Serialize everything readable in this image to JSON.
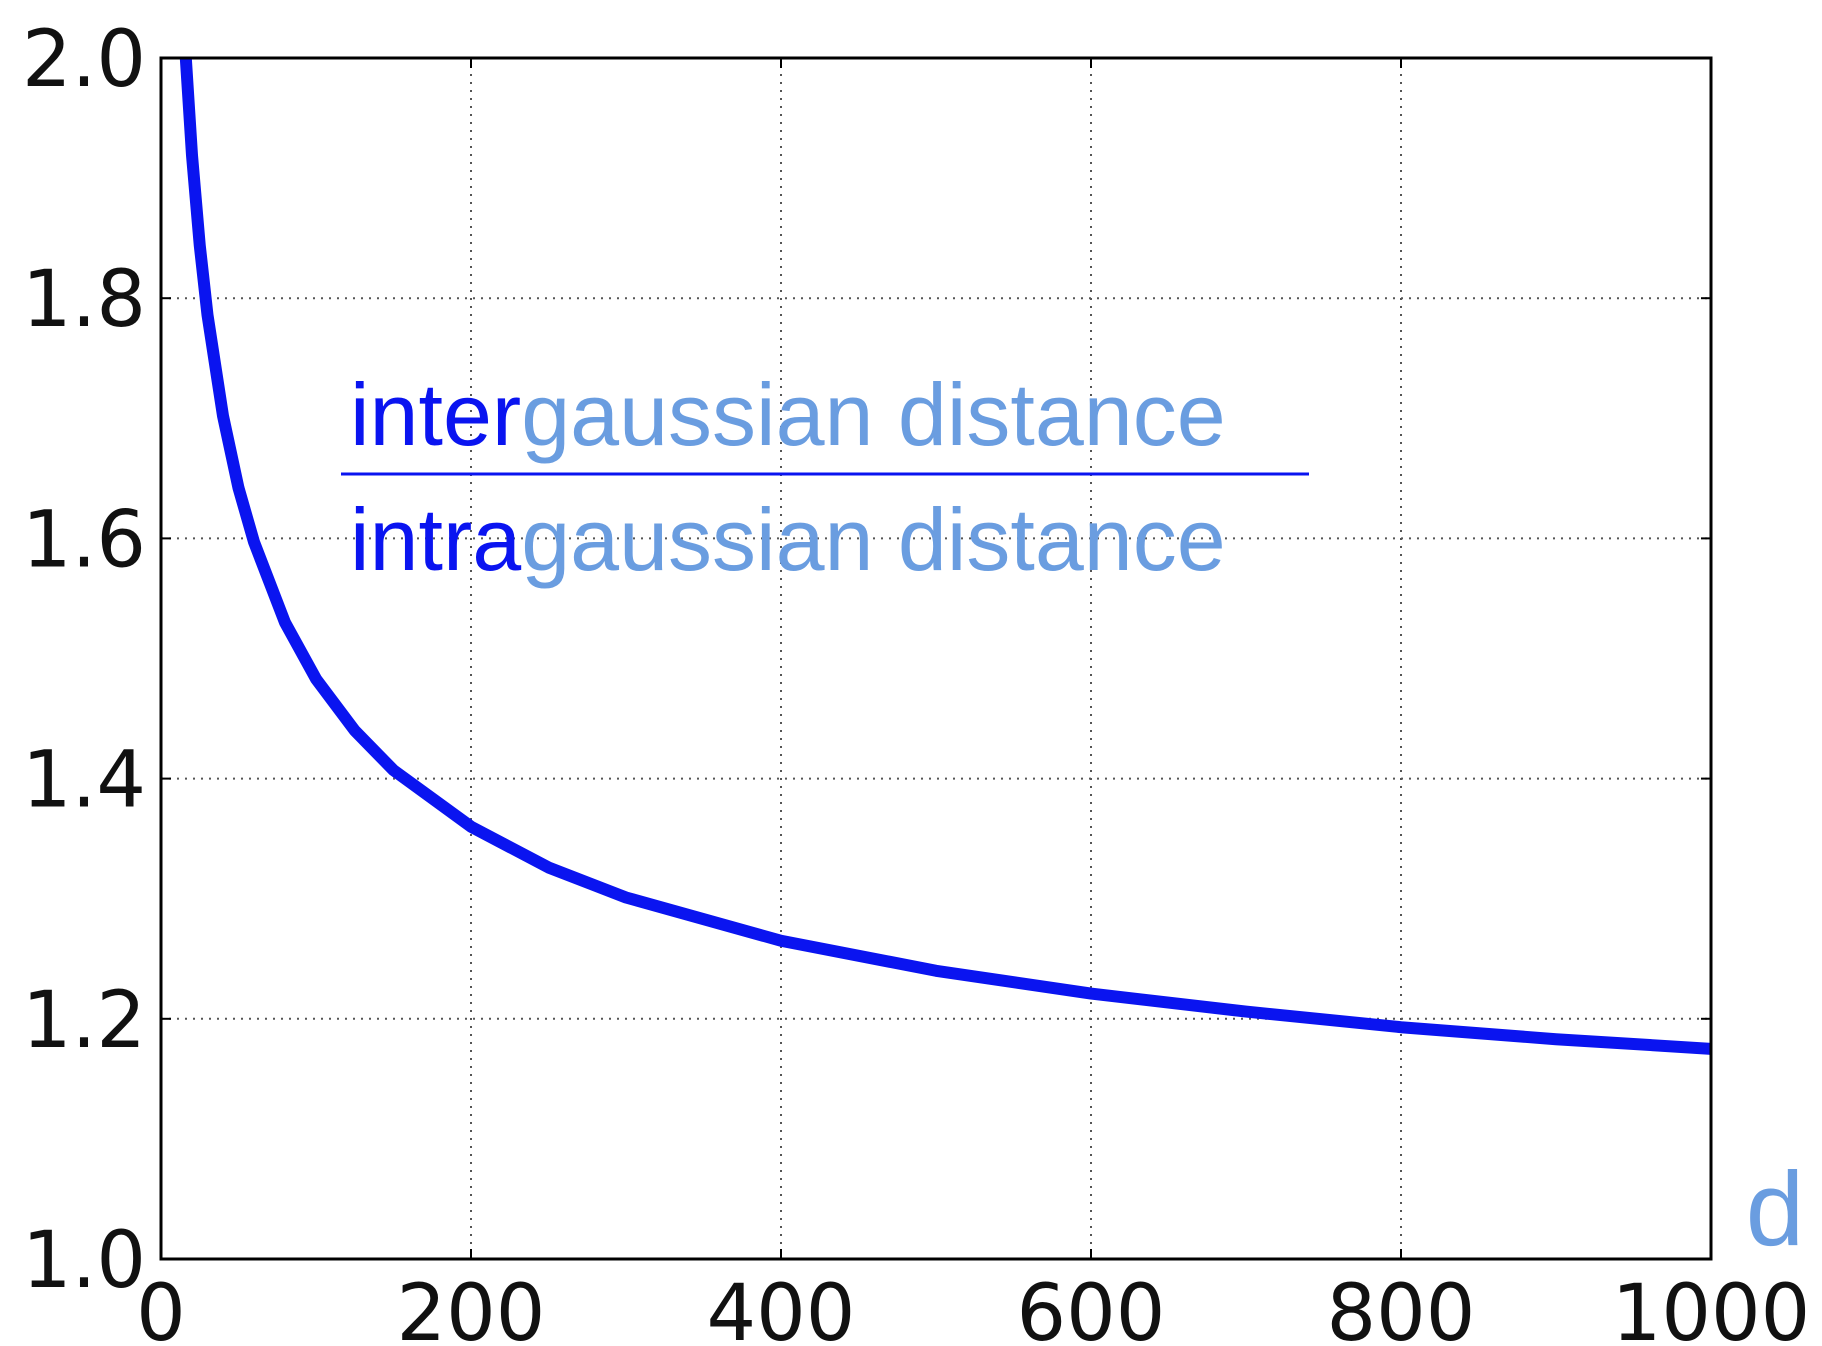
{
  "chart_data": {
    "type": "line",
    "x": [
      16,
      20,
      25,
      30,
      40,
      50,
      60,
      80,
      100,
      125,
      150,
      200,
      250,
      300,
      400,
      500,
      600,
      700,
      800,
      900,
      1000
    ],
    "series": [
      {
        "color": "#0a14f0",
        "values": [
          2.0,
          1.919,
          1.844,
          1.786,
          1.702,
          1.642,
          1.597,
          1.53,
          1.483,
          1.44,
          1.407,
          1.36,
          1.326,
          1.301,
          1.265,
          1.24,
          1.221,
          1.206,
          1.193,
          1.183,
          1.175
        ]
      }
    ],
    "xlim": [
      0,
      1000
    ],
    "ylim": [
      1.0,
      2.0
    ],
    "xticks": [
      0,
      200,
      400,
      600,
      800,
      1000
    ],
    "yticks": [
      {
        "value": 1.0,
        "label": "1.0"
      },
      {
        "value": 1.2,
        "label": "1.2"
      },
      {
        "value": 1.4,
        "label": "1.4"
      },
      {
        "value": 1.6,
        "label": "1.6"
      },
      {
        "value": 1.8,
        "label": "1.8"
      },
      {
        "value": 2.0,
        "label": "2.0"
      }
    ],
    "xlabel": "d",
    "grid": true,
    "annotation": {
      "numerator": [
        "inter",
        "gaussian distance"
      ],
      "denominator": [
        "intra",
        "gaussian distance"
      ]
    }
  }
}
